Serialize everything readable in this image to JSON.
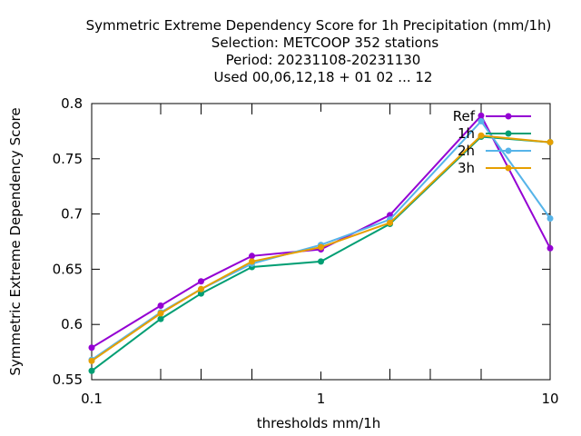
{
  "chart_data": {
    "type": "line",
    "title_lines": [
      "Symmetric Extreme Dependency Score  for 1h Precipitation (mm/1h)",
      "Selection: METCOOP    352 stations",
      "Period: 20231108-20231130",
      "Used  00,06,12,18 + 01 02 ... 12"
    ],
    "xlabel": "thresholds mm/1h",
    "ylabel": "Symmetric Extreme Dependency Score",
    "x_scale": "log",
    "xlim": [
      0.1,
      10
    ],
    "ylim": [
      0.55,
      0.8
    ],
    "x_ticks": [
      {
        "value": 0.1,
        "label": "0.1"
      },
      {
        "value": 1,
        "label": "1"
      },
      {
        "value": 10,
        "label": "10"
      }
    ],
    "y_ticks": [
      {
        "value": 0.55,
        "label": "0.55"
      },
      {
        "value": 0.6,
        "label": "0.6"
      },
      {
        "value": 0.65,
        "label": "0.65"
      },
      {
        "value": 0.7,
        "label": "0.7"
      },
      {
        "value": 0.75,
        "label": "0.75"
      },
      {
        "value": 0.8,
        "label": "0.8"
      }
    ],
    "grid": false,
    "legend_position": "top-right",
    "x": [
      0.1,
      0.2,
      0.3,
      0.5,
      1,
      2,
      5,
      10
    ],
    "series": [
      {
        "name": "Ref",
        "color": "#9400d3",
        "marker": "filled-circle",
        "values": [
          0.579,
          0.617,
          0.639,
          0.662,
          0.668,
          0.699,
          0.789,
          0.669
        ]
      },
      {
        "name": "1h",
        "color": "#009e73",
        "marker": "filled-circle",
        "values": [
          0.558,
          0.605,
          0.628,
          0.652,
          0.657,
          0.691,
          0.77,
          0.765
        ]
      },
      {
        "name": "2h",
        "color": "#56b4e9",
        "marker": "filled-circle",
        "values": [
          0.568,
          0.611,
          0.632,
          0.655,
          0.672,
          0.695,
          0.784,
          0.696
        ]
      },
      {
        "name": "3h",
        "color": "#e69f00",
        "marker": "filled-circle",
        "values": [
          0.567,
          0.61,
          0.632,
          0.657,
          0.67,
          0.692,
          0.771,
          0.765
        ]
      }
    ]
  }
}
